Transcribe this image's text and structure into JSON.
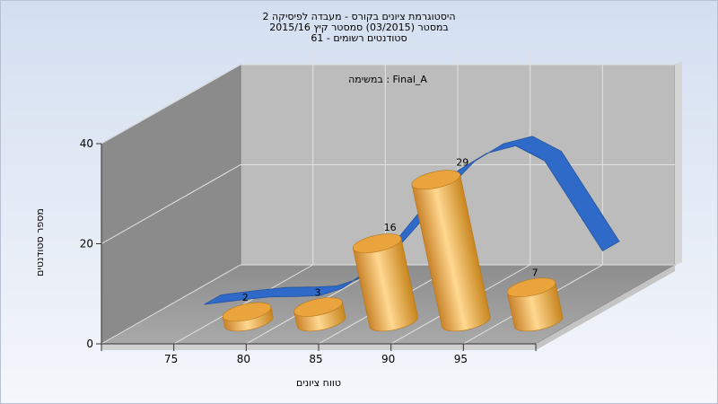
{
  "chart_data": {
    "type": "bar",
    "title_lines": [
      "היסטוגרמת ציונים בקורס - מעבדה לפיסיקה 2",
      "במסטר  (03/2015)  סמסטר קיץ  2015/16",
      "סטודנטים רשומים - 61"
    ],
    "annotation": "במשימה : Final_A",
    "xlabel": "טווח ציונים",
    "ylabel": "מספר סטודנטים",
    "x_ticks": [
      75,
      80,
      85,
      90,
      95
    ],
    "y_ticks": [
      0,
      20,
      40
    ],
    "ylim": [
      0,
      40
    ],
    "xlim": [
      70,
      100
    ],
    "bars": [
      {
        "x": 77.5,
        "value": 2,
        "label": "2"
      },
      {
        "x": 82.5,
        "value": 3,
        "label": "3"
      },
      {
        "x": 87.5,
        "value": 16,
        "label": "16"
      },
      {
        "x": 92.5,
        "value": 29,
        "label": "29"
      },
      {
        "x": 97.5,
        "value": 7,
        "label": "7"
      }
    ],
    "curve": {
      "x": [
        72.5,
        75,
        77,
        79,
        80.5,
        82,
        84,
        86,
        88,
        90,
        92,
        94,
        96,
        98,
        100
      ],
      "y": [
        0.3,
        1.2,
        1.8,
        1.9,
        2.1,
        3.5,
        7.5,
        14,
        21,
        27,
        30.5,
        32,
        29,
        20,
        11
      ]
    },
    "grid": true,
    "colors": {
      "bar": "#f0b14a",
      "bar_dark": "#c8851e",
      "curve": "#2f6ac8",
      "back_wall": "#bbbbbb",
      "side_wall": "#8a8a8a",
      "floor": "#9a9a9a"
    }
  }
}
